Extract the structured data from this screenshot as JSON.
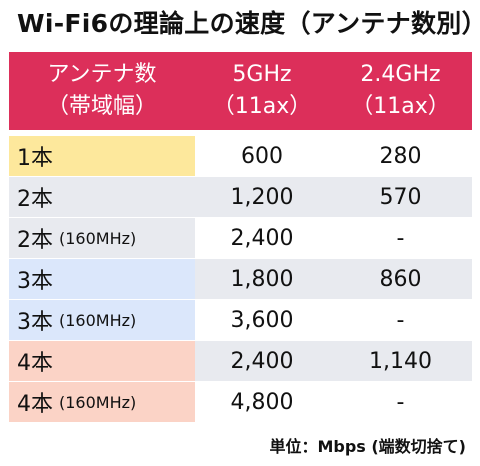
{
  "title": "Wi-Fi6の理論上の速度（アンテナ数別）",
  "header": {
    "col0_line1": "アンテナ数",
    "col0_line2": "（帯域幅）",
    "col1_line1": "5GHz",
    "col1_line2": "（11ax）",
    "col2_line1": "2.4GHz",
    "col2_line2": "（11ax）"
  },
  "rows": [
    {
      "label": "1本",
      "sub": "",
      "v5": "600",
      "v24": "280"
    },
    {
      "label": "2本",
      "sub": "",
      "v5": "1,200",
      "v24": "570"
    },
    {
      "label": "2本",
      "sub": "(160MHz)",
      "v5": "2,400",
      "v24": "-"
    },
    {
      "label": "3本",
      "sub": "",
      "v5": "1,800",
      "v24": "860"
    },
    {
      "label": "3本",
      "sub": "(160MHz)",
      "v5": "3,600",
      "v24": "-"
    },
    {
      "label": "4本",
      "sub": "",
      "v5": "2,400",
      "v24": "1,140"
    },
    {
      "label": "4本",
      "sub": "(160MHz)",
      "v5": "4,800",
      "v24": "-"
    }
  ],
  "footnote": "単位：Mbps (端数切捨て)",
  "colors": {
    "header_bg": "#dc2f5a",
    "row_1_antenna": "#fde89c",
    "row_2_antenna": "#e8eaef",
    "row_3_antenna": "#dbe7fb",
    "row_4_antenna": "#fbd3c6",
    "stripe": "#e8eaef"
  }
}
